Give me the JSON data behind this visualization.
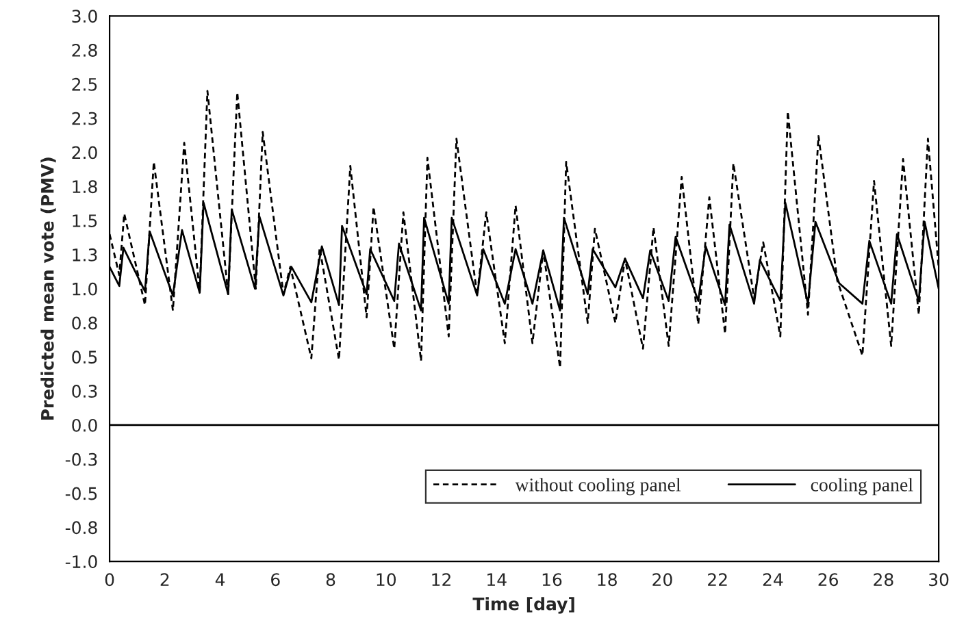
{
  "chart_data": {
    "type": "line",
    "xlabel": "Time [day]",
    "ylabel": "Predicted mean vote (PMV)",
    "xlim": [
      0,
      30
    ],
    "xticks": [
      0,
      2,
      4,
      6,
      8,
      10,
      12,
      14,
      16,
      18,
      20,
      22,
      24,
      26,
      28,
      30
    ],
    "ylim": [
      -1.0,
      3.0
    ],
    "yticks": [
      {
        "value": -1.0,
        "label": "-1.0"
      },
      {
        "value": -0.75,
        "label": "-0.8"
      },
      {
        "value": -0.5,
        "label": "-0.5"
      },
      {
        "value": -0.25,
        "label": "-0.3"
      },
      {
        "value": 0,
        "label": "0.0"
      },
      {
        "value": 0.25,
        "label": "0.3"
      },
      {
        "value": 0.5,
        "label": "0.5"
      },
      {
        "value": 0.75,
        "label": "0.8"
      },
      {
        "value": 1.0,
        "label": "1.0"
      },
      {
        "value": 1.25,
        "label": "1.3"
      },
      {
        "value": 1.5,
        "label": "1.5"
      },
      {
        "value": 1.75,
        "label": "1.8"
      },
      {
        "value": 2.0,
        "label": "2.0"
      },
      {
        "value": 2.25,
        "label": "2.3"
      },
      {
        "value": 2.5,
        "label": "2.5"
      },
      {
        "value": 2.75,
        "label": "2.8"
      },
      {
        "value": 3.0,
        "label": "3.0"
      }
    ],
    "grid": false,
    "legend": "bottom right",
    "marker": "none",
    "ref_lines": [
      {
        "axis": "y",
        "value": 0,
        "color": "#000000",
        "line_style": "solid"
      }
    ],
    "series": [
      {
        "name": "without cooling panel",
        "color": "#000000",
        "line_style": "dashed",
        "x": [
          0,
          0.35,
          0.53,
          1.28,
          1.6,
          2.29,
          2.7,
          3.26,
          3.54,
          4.29,
          4.62,
          5.29,
          5.54,
          6.29,
          6.54,
          7.3,
          7.6,
          8.3,
          8.71,
          9.3,
          9.55,
          10.3,
          10.63,
          11.27,
          11.5,
          12.27,
          12.55,
          13.3,
          13.63,
          14.3,
          14.69,
          15.3,
          15.69,
          16.3,
          16.52,
          17.3,
          17.56,
          18.3,
          18.65,
          19.3,
          19.68,
          20.23,
          20.7,
          21.3,
          21.7,
          22.27,
          22.57,
          23.32,
          23.65,
          24.27,
          24.54,
          25.27,
          25.65,
          26.33,
          27.24,
          27.66,
          28.28,
          28.71,
          29.28,
          29.61,
          30
        ],
        "values": [
          1.4,
          1.1,
          1.55,
          0.88,
          1.93,
          0.84,
          2.07,
          0.98,
          2.45,
          0.96,
          2.44,
          1.0,
          2.15,
          0.96,
          1.16,
          0.49,
          1.3,
          0.48,
          1.9,
          0.79,
          1.6,
          0.56,
          1.56,
          0.47,
          1.96,
          0.65,
          2.1,
          0.95,
          1.56,
          0.6,
          1.61,
          0.6,
          1.28,
          0.42,
          1.93,
          0.75,
          1.44,
          0.75,
          1.22,
          0.56,
          1.45,
          0.58,
          1.82,
          0.74,
          1.67,
          0.67,
          1.92,
          0.93,
          1.34,
          0.65,
          2.3,
          0.81,
          2.12,
          1.06,
          0.51,
          1.79,
          0.58,
          1.95,
          0.81,
          2.1,
          1.15
        ]
      },
      {
        "name": "cooling panel",
        "color": "#000000",
        "line_style": "solid",
        "x": [
          0,
          0.35,
          0.5,
          1.28,
          1.45,
          2.29,
          2.62,
          3.26,
          3.4,
          4.29,
          4.42,
          5.26,
          5.42,
          6.29,
          6.58,
          7.3,
          7.68,
          8.3,
          8.41,
          9.3,
          9.43,
          10.3,
          10.47,
          11.27,
          11.38,
          12.27,
          12.38,
          13.3,
          13.52,
          14.3,
          14.69,
          15.3,
          15.69,
          16.3,
          16.44,
          17.3,
          17.48,
          18.3,
          18.65,
          19.3,
          19.56,
          20.23,
          20.48,
          21.3,
          21.57,
          22.27,
          22.43,
          23.32,
          23.53,
          24.27,
          24.45,
          25.27,
          25.54,
          26.4,
          27.24,
          27.49,
          28.28,
          28.49,
          29.28,
          29.49,
          30
        ],
        "values": [
          1.16,
          1.02,
          1.3,
          0.98,
          1.42,
          0.95,
          1.43,
          0.97,
          1.63,
          0.96,
          1.58,
          1.0,
          1.53,
          0.95,
          1.16,
          0.9,
          1.31,
          0.88,
          1.46,
          0.96,
          1.29,
          0.91,
          1.33,
          0.84,
          1.52,
          0.89,
          1.52,
          0.95,
          1.29,
          0.89,
          1.29,
          0.89,
          1.28,
          0.84,
          1.52,
          0.96,
          1.29,
          1.01,
          1.22,
          0.93,
          1.28,
          0.91,
          1.38,
          0.91,
          1.31,
          0.88,
          1.47,
          0.89,
          1.21,
          0.91,
          1.63,
          0.89,
          1.49,
          1.04,
          0.89,
          1.35,
          0.89,
          1.4,
          0.91,
          1.49,
          1.0
        ]
      }
    ]
  }
}
